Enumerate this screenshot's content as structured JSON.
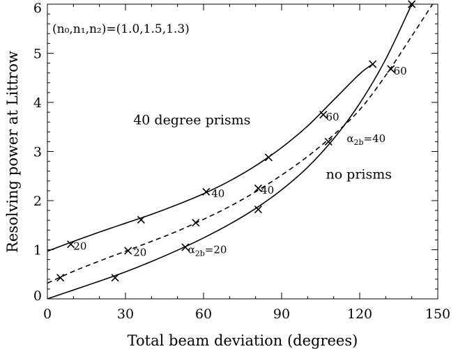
{
  "chart_data": {
    "type": "line",
    "title": "",
    "xlabel": "Total beam deviation (degrees)",
    "ylabel": "Resolving power at Littrow",
    "xlim": [
      0,
      150
    ],
    "ylim": [
      0,
      6
    ],
    "xticks": [
      "0",
      "30",
      "60",
      "90",
      "120",
      "150"
    ],
    "yticks": [
      "0",
      "1",
      "2",
      "3",
      "4",
      "5",
      "6"
    ],
    "grid": false,
    "legend": "none",
    "parameter_note": "(n₀,n₁,n₂)=(1.0,1.5,1.3)",
    "series": [
      {
        "name": "40 degree prisms",
        "style": "solid",
        "x": [
          0,
          10,
          20,
          30,
          40,
          50,
          60,
          70,
          80,
          90,
          100,
          110,
          120,
          125
        ],
        "y": [
          0.97,
          1.17,
          1.36,
          1.54,
          1.72,
          1.92,
          2.14,
          2.4,
          2.71,
          3.08,
          3.52,
          4.05,
          4.58,
          4.78
        ],
        "markers": {
          "x": [
            9,
            36,
            61,
            85,
            106,
            125
          ],
          "y": [
            1.11,
            1.61,
            2.18,
            2.88,
            3.75,
            4.78
          ]
        }
      },
      {
        "name": "",
        "style": "dashed",
        "x": [
          0,
          10,
          20,
          30,
          40,
          50,
          60,
          70,
          80,
          90,
          100,
          110,
          120,
          130,
          140,
          148
        ],
        "y": [
          0.32,
          0.56,
          0.77,
          0.97,
          1.17,
          1.38,
          1.62,
          1.88,
          2.18,
          2.52,
          2.9,
          3.34,
          3.85,
          4.55,
          5.35,
          6.0
        ],
        "markers": {
          "x": [
            5,
            31,
            57,
            81,
            108,
            132
          ],
          "y": [
            0.43,
            0.98,
            1.55,
            2.25,
            3.2,
            4.68
          ]
        }
      },
      {
        "name": "no prisms",
        "style": "solid",
        "x": [
          0,
          10,
          20,
          30,
          40,
          50,
          60,
          70,
          80,
          90,
          100,
          110,
          120,
          130,
          140
        ],
        "y": [
          0.0,
          0.18,
          0.36,
          0.55,
          0.76,
          0.99,
          1.24,
          1.52,
          1.84,
          2.22,
          2.68,
          3.26,
          3.98,
          4.88,
          6.0
        ],
        "markers": {
          "x": [
            26,
            53,
            81,
            140
          ],
          "y": [
            0.43,
            1.05,
            1.82,
            6.0
          ]
        }
      }
    ],
    "annotations": [
      {
        "text": "40 degree prisms",
        "x": 33,
        "y": 3.55
      },
      {
        "text": "no prisms",
        "x": 107,
        "y": 2.45
      },
      {
        "text": "20",
        "x": 10,
        "y": 1.0,
        "sub": ""
      },
      {
        "text": "20",
        "x": 33,
        "y": 0.87,
        "sub": ""
      },
      {
        "text": "40",
        "x": 63,
        "y": 2.07,
        "sub": ""
      },
      {
        "text": "40",
        "x": 82,
        "y": 2.14,
        "sub": ""
      },
      {
        "text": "60",
        "x": 107,
        "y": 3.63,
        "sub": ""
      },
      {
        "text": "60",
        "x": 133,
        "y": 4.57,
        "sub": ""
      },
      {
        "text": "α",
        "x": 54,
        "y": 0.93,
        "sub": "2b",
        "tail": "=20"
      },
      {
        "text": "α",
        "x": 115,
        "y": 3.19,
        "sub": "2b",
        "tail": "=40"
      }
    ]
  }
}
